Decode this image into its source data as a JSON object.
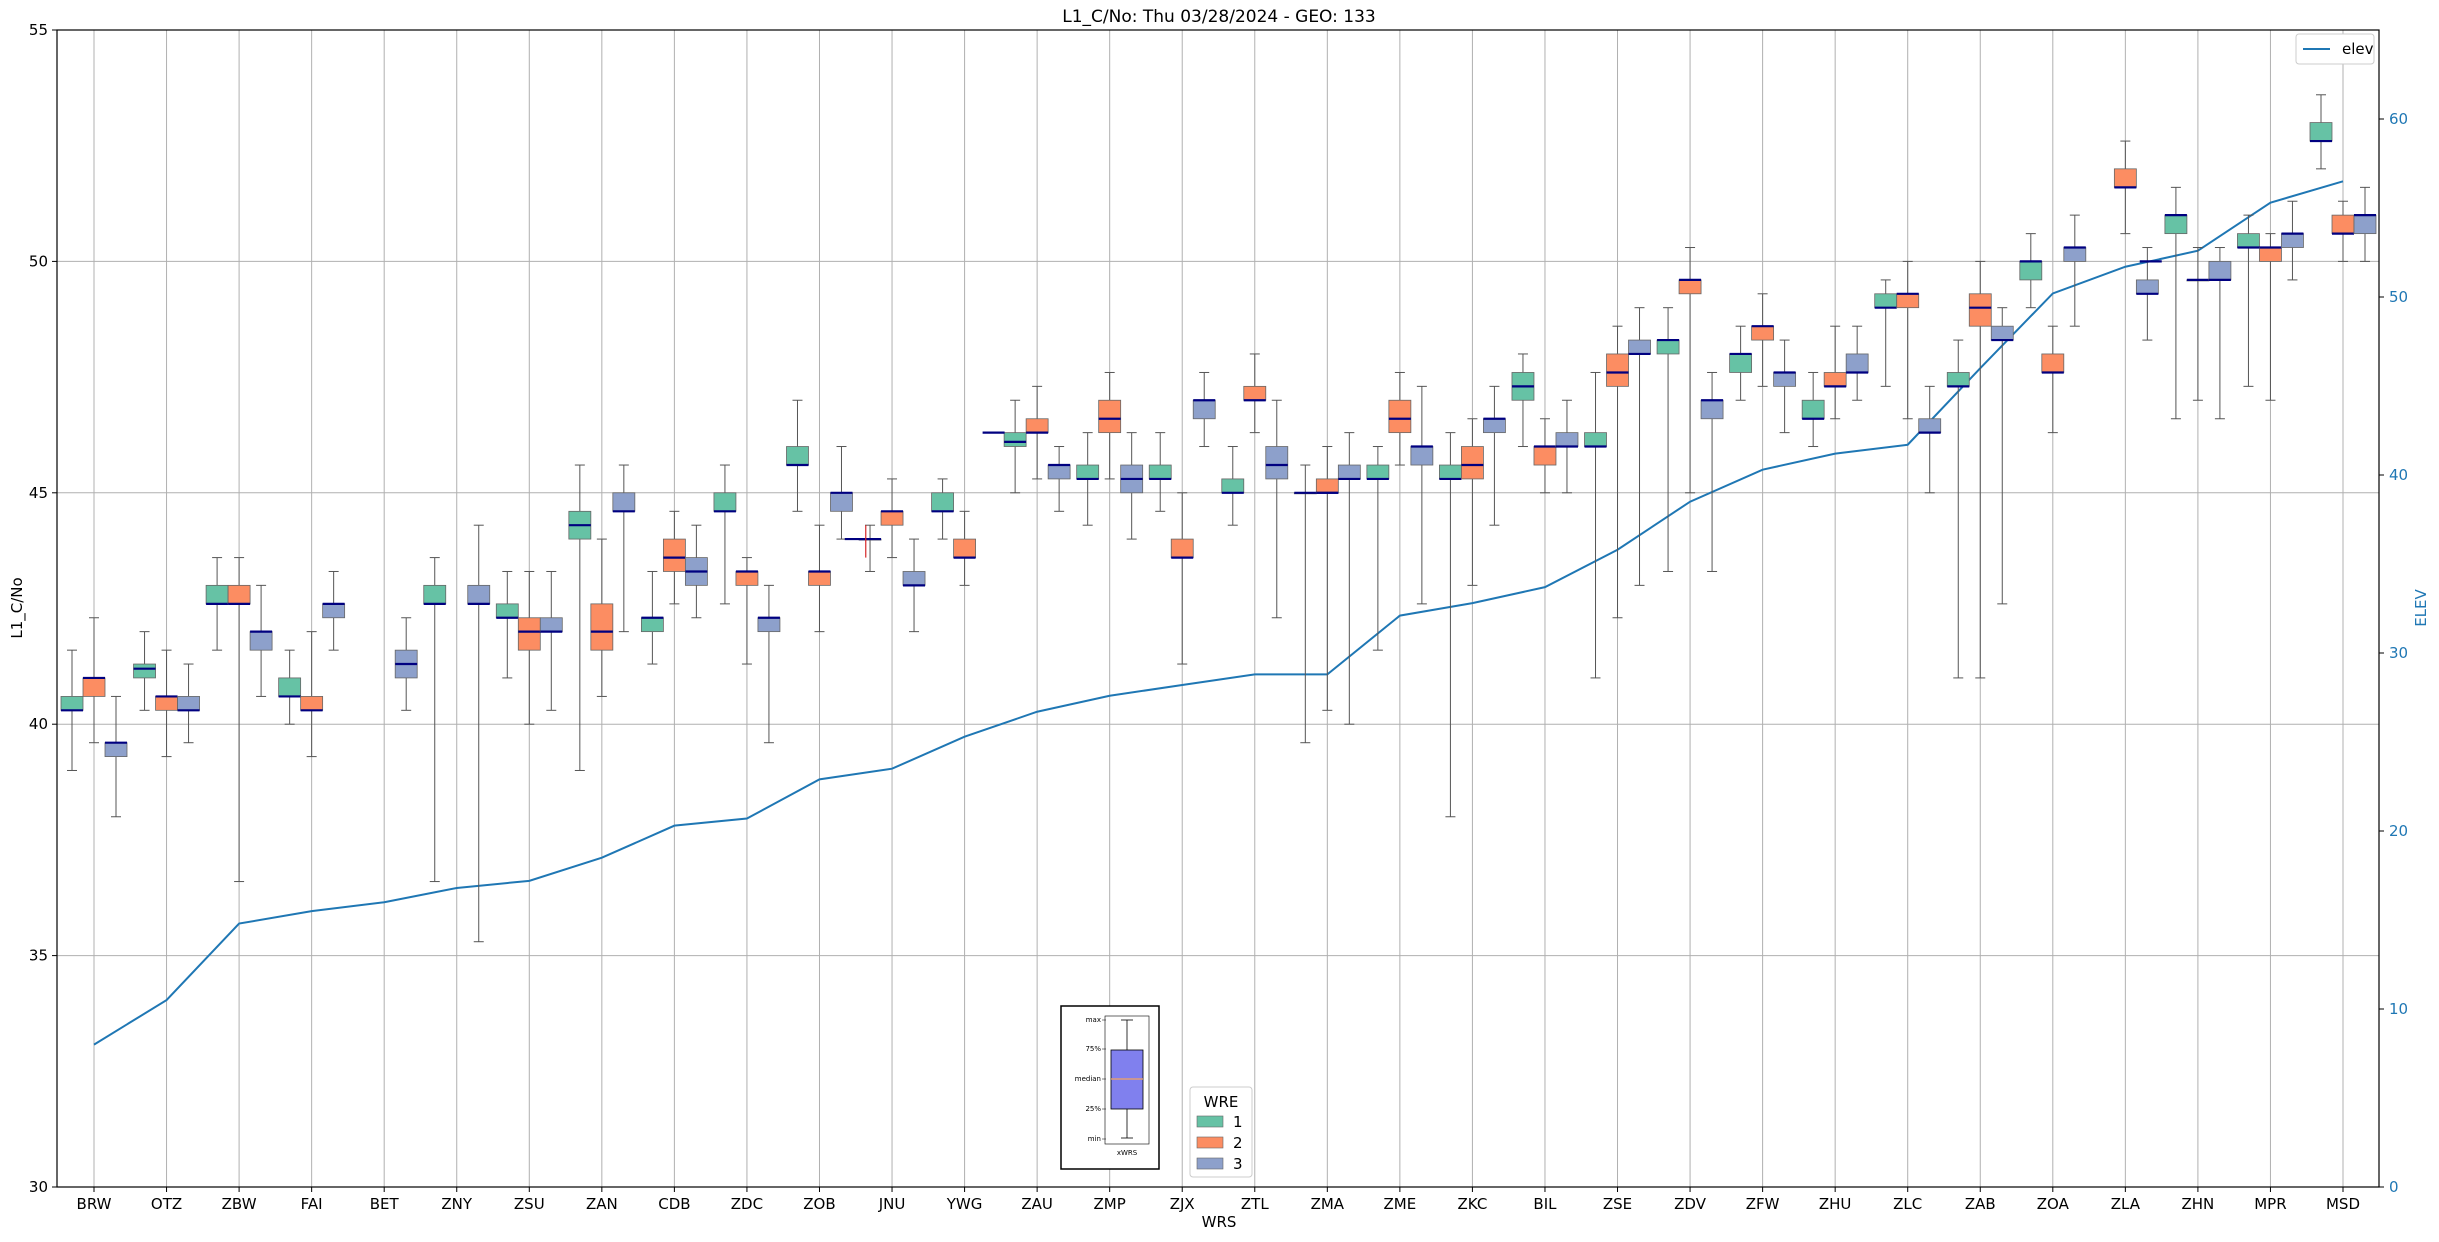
{
  "chart_data": {
    "type": "box",
    "title": "L1_C/No: Thu 03/28/2024 - GEO: 133",
    "xlabel": "WRS",
    "ylabel": "L1_C/No",
    "y2label": "ELEV",
    "ylim": [
      30,
      55
    ],
    "y2lim": [
      0,
      65
    ],
    "yticks": [
      30,
      35,
      40,
      45,
      50,
      55
    ],
    "y2ticks": [
      0,
      10,
      20,
      30,
      40,
      50,
      60
    ],
    "grid": true,
    "categories": [
      "BRW",
      "OTZ",
      "ZBW",
      "FAI",
      "BET",
      "ZNY",
      "ZSU",
      "ZAN",
      "CDB",
      "ZDC",
      "ZOB",
      "JNU",
      "YWG",
      "ZAU",
      "ZMP",
      "ZJX",
      "ZTL",
      "ZMA",
      "ZME",
      "ZKC",
      "BIL",
      "ZSE",
      "ZDV",
      "ZFW",
      "ZHU",
      "ZLC",
      "ZAB",
      "ZOA",
      "ZLA",
      "ZHN",
      "MPR",
      "MSD"
    ],
    "wre_legend": {
      "title": "WRE",
      "entries": [
        "1",
        "2",
        "3"
      ],
      "colors": [
        "#66c2a5",
        "#fc8d62",
        "#8da0cb"
      ]
    },
    "line_legend": {
      "label": "elev",
      "color": "#1f77b4"
    },
    "elev": [
      8,
      10.5,
      14.8,
      15.5,
      16,
      16.8,
      17.2,
      18.5,
      20.3,
      20.7,
      22.9,
      23.5,
      25.3,
      26.7,
      27.6,
      28.2,
      28.8,
      28.8,
      32.1,
      32.8,
      33.7,
      35.8,
      38.5,
      40.3,
      41.2,
      41.7,
      46,
      50.2,
      51.7,
      52.6,
      55.3,
      56.5
    ],
    "series": [
      {
        "name": "1",
        "color": "#66c2a5",
        "boxes": [
          {
            "cat": 0,
            "min": 39,
            "q1": 40.3,
            "med": 40.3,
            "q3": 40.6,
            "max": 41.6
          },
          {
            "cat": 1,
            "min": 40.3,
            "q1": 41,
            "med": 41.2,
            "q3": 41.3,
            "max": 42
          },
          {
            "cat": 2,
            "min": 41.6,
            "q1": 42.6,
            "med": 42.6,
            "q3": 43,
            "max": 43.6
          },
          {
            "cat": 3,
            "min": 40,
            "q1": 40.6,
            "med": 40.6,
            "q3": 41,
            "max": 41.6
          },
          {
            "cat": 5,
            "min": 36.6,
            "q1": 42.6,
            "med": 42.6,
            "q3": 43,
            "max": 43.6
          },
          {
            "cat": 6,
            "min": 41,
            "q1": 42.3,
            "med": 42.3,
            "q3": 42.6,
            "max": 43.3
          },
          {
            "cat": 7,
            "min": 39,
            "q1": 44,
            "med": 44.3,
            "q3": 44.6,
            "max": 45.6
          },
          {
            "cat": 8,
            "min": 41.3,
            "q1": 42,
            "med": 42.3,
            "q3": 42.3,
            "max": 43.3
          },
          {
            "cat": 9,
            "min": 42.6,
            "q1": 44.6,
            "med": 44.6,
            "q3": 45,
            "max": 45.6
          },
          {
            "cat": 10,
            "min": 44.6,
            "q1": 45.6,
            "med": 45.6,
            "q3": 46,
            "max": 47
          },
          {
            "cat": 11,
            "min": 43.3,
            "q1": 44,
            "med": 44,
            "q3": 44,
            "max": 44.3
          },
          {
            "cat": 12,
            "min": 44,
            "q1": 44.6,
            "med": 44.6,
            "q3": 45,
            "max": 45.3
          },
          {
            "cat": 13,
            "min": 45,
            "q1": 46,
            "med": 46.1,
            "q3": 46.3,
            "max": 47
          },
          {
            "cat": 14,
            "min": 44.3,
            "q1": 45.3,
            "med": 45.3,
            "q3": 45.6,
            "max": 46.3
          },
          {
            "cat": 15,
            "min": 44.6,
            "q1": 45.3,
            "med": 45.3,
            "q3": 45.6,
            "max": 46.3
          },
          {
            "cat": 16,
            "min": 44.3,
            "q1": 45,
            "med": 45,
            "q3": 45.3,
            "max": 46
          },
          {
            "cat": 17,
            "min": 39.6,
            "q1": 45,
            "med": 45,
            "q3": 45,
            "max": 45.6
          },
          {
            "cat": 18,
            "min": 41.6,
            "q1": 45.3,
            "med": 45.3,
            "q3": 45.6,
            "max": 46
          },
          {
            "cat": 19,
            "min": 38,
            "q1": 45.3,
            "med": 45.3,
            "q3": 45.6,
            "max": 46.3
          },
          {
            "cat": 20,
            "min": 46,
            "q1": 47,
            "med": 47.3,
            "q3": 47.6,
            "max": 48
          },
          {
            "cat": 21,
            "min": 41,
            "q1": 46,
            "med": 46,
            "q3": 46.3,
            "max": 47.6
          },
          {
            "cat": 22,
            "min": 43.3,
            "q1": 48,
            "med": 48.3,
            "q3": 48.3,
            "max": 49
          },
          {
            "cat": 23,
            "min": 47,
            "q1": 47.6,
            "med": 48,
            "q3": 48,
            "max": 48.6
          },
          {
            "cat": 24,
            "min": 46,
            "q1": 46.6,
            "med": 46.6,
            "q3": 47,
            "max": 47.6
          },
          {
            "cat": 25,
            "min": 47.3,
            "q1": 49,
            "med": 49,
            "q3": 49.3,
            "max": 49.6
          },
          {
            "cat": 26,
            "min": 41,
            "q1": 47.3,
            "med": 47.3,
            "q3": 47.6,
            "max": 48.3
          },
          {
            "cat": 27,
            "min": 49,
            "q1": 49.6,
            "med": 50,
            "q3": 50,
            "max": 50.6
          },
          {
            "cat": 29,
            "min": 46.6,
            "q1": 50.6,
            "med": 51,
            "q3": 51,
            "max": 51.6
          },
          {
            "cat": 30,
            "min": 47.3,
            "q1": 50.3,
            "med": 50.3,
            "q3": 50.6,
            "max": 51
          },
          {
            "cat": 31,
            "min": 52,
            "q1": 52.6,
            "med": 52.6,
            "q3": 53,
            "max": 53.6
          }
        ]
      },
      {
        "name": "2",
        "color": "#fc8d62",
        "boxes": [
          {
            "cat": 0,
            "min": 39.6,
            "q1": 40.6,
            "med": 41,
            "q3": 41,
            "max": 42.3
          },
          {
            "cat": 1,
            "min": 39.3,
            "q1": 40.3,
            "med": 40.6,
            "q3": 40.6,
            "max": 41.6
          },
          {
            "cat": 2,
            "min": 36.6,
            "q1": 42.6,
            "med": 42.6,
            "q3": 43,
            "max": 43.6
          },
          {
            "cat": 3,
            "min": 39.3,
            "q1": 40.3,
            "med": 40.3,
            "q3": 40.6,
            "max": 42
          },
          {
            "cat": 6,
            "min": 40,
            "q1": 41.6,
            "med": 42,
            "q3": 42.3,
            "max": 43.3
          },
          {
            "cat": 7,
            "min": 40.6,
            "q1": 41.6,
            "med": 42,
            "q3": 42.6,
            "max": 44
          },
          {
            "cat": 8,
            "min": 42.6,
            "q1": 43.3,
            "med": 43.6,
            "q3": 44,
            "max": 44.6
          },
          {
            "cat": 9,
            "min": 41.3,
            "q1": 43,
            "med": 43.3,
            "q3": 43.3,
            "max": 43.6
          },
          {
            "cat": 10,
            "min": 42,
            "q1": 43,
            "med": 43.3,
            "q3": 43.3,
            "max": 44.3
          },
          {
            "cat": 11,
            "min": 43.6,
            "q1": 44.3,
            "med": 44.6,
            "q3": 44.6,
            "max": 45.3
          },
          {
            "cat": 12,
            "min": 43,
            "q1": 43.6,
            "med": 43.6,
            "q3": 44,
            "max": 44.6
          },
          {
            "cat": 13,
            "min": 45.3,
            "q1": 46.3,
            "med": 46.3,
            "q3": 46.6,
            "max": 47.3
          },
          {
            "cat": 14,
            "min": 45.3,
            "q1": 46.3,
            "med": 46.6,
            "q3": 47,
            "max": 47.6
          },
          {
            "cat": 15,
            "min": 41.3,
            "q1": 43.6,
            "med": 43.6,
            "q3": 44,
            "max": 45
          },
          {
            "cat": 16,
            "min": 46.3,
            "q1": 47,
            "med": 47,
            "q3": 47.3,
            "max": 48
          },
          {
            "cat": 17,
            "min": 40.3,
            "q1": 45,
            "med": 45,
            "q3": 45.3,
            "max": 46
          },
          {
            "cat": 18,
            "min": 45.6,
            "q1": 46.3,
            "med": 46.6,
            "q3": 47,
            "max": 47.6
          },
          {
            "cat": 19,
            "min": 43,
            "q1": 45.3,
            "med": 45.6,
            "q3": 46,
            "max": 46.6
          },
          {
            "cat": 20,
            "min": 45,
            "q1": 45.6,
            "med": 46,
            "q3": 46,
            "max": 46.6
          },
          {
            "cat": 21,
            "min": 42.3,
            "q1": 47.3,
            "med": 47.6,
            "q3": 48,
            "max": 48.6
          },
          {
            "cat": 22,
            "min": 45,
            "q1": 49.3,
            "med": 49.6,
            "q3": 49.6,
            "max": 50.3
          },
          {
            "cat": 23,
            "min": 47.3,
            "q1": 48.3,
            "med": 48.6,
            "q3": 48.6,
            "max": 49.3
          },
          {
            "cat": 24,
            "min": 46.6,
            "q1": 47.3,
            "med": 47.3,
            "q3": 47.6,
            "max": 48.6
          },
          {
            "cat": 25,
            "min": 46.6,
            "q1": 49,
            "med": 49.3,
            "q3": 49.3,
            "max": 50
          },
          {
            "cat": 26,
            "min": 41,
            "q1": 48.6,
            "med": 49,
            "q3": 49.3,
            "max": 50
          },
          {
            "cat": 27,
            "min": 46.3,
            "q1": 47.6,
            "med": 47.6,
            "q3": 48,
            "max": 48.6
          },
          {
            "cat": 28,
            "min": 50.6,
            "q1": 51.6,
            "med": 51.6,
            "q3": 52,
            "max": 52.6
          },
          {
            "cat": 29,
            "min": 47,
            "q1": 49.6,
            "med": 49.6,
            "q3": 49.6,
            "max": 50.3
          },
          {
            "cat": 30,
            "min": 47,
            "q1": 50,
            "med": 50.3,
            "q3": 50.3,
            "max": 50.6
          },
          {
            "cat": 31,
            "min": 50,
            "q1": 50.6,
            "med": 50.6,
            "q3": 51,
            "max": 51.3
          }
        ]
      },
      {
        "name": "3",
        "color": "#8da0cb",
        "boxes": [
          {
            "cat": 0,
            "min": 38,
            "q1": 39.3,
            "med": 39.6,
            "q3": 39.6,
            "max": 40.6
          },
          {
            "cat": 1,
            "min": 39.6,
            "q1": 40.3,
            "med": 40.3,
            "q3": 40.6,
            "max": 41.3
          },
          {
            "cat": 2,
            "min": 40.6,
            "q1": 41.6,
            "med": 42,
            "q3": 42,
            "max": 43
          },
          {
            "cat": 3,
            "min": 41.6,
            "q1": 42.3,
            "med": 42.6,
            "q3": 42.6,
            "max": 43.3
          },
          {
            "cat": 4,
            "min": 40.3,
            "q1": 41,
            "med": 41.3,
            "q3": 41.6,
            "max": 42.3
          },
          {
            "cat": 5,
            "min": 35.3,
            "q1": 42.6,
            "med": 42.6,
            "q3": 43,
            "max": 44.3
          },
          {
            "cat": 6,
            "min": 40.3,
            "q1": 42,
            "med": 42,
            "q3": 42.3,
            "max": 43.3
          },
          {
            "cat": 7,
            "min": 42,
            "q1": 44.6,
            "med": 44.6,
            "q3": 45,
            "max": 45.6
          },
          {
            "cat": 8,
            "min": 42.3,
            "q1": 43,
            "med": 43.3,
            "q3": 43.6,
            "max": 44.3
          },
          {
            "cat": 9,
            "min": 39.6,
            "q1": 42,
            "med": 42.3,
            "q3": 42.3,
            "max": 43
          },
          {
            "cat": 10,
            "min": 44,
            "q1": 44.6,
            "med": 45,
            "q3": 45,
            "max": 46
          },
          {
            "cat": 11,
            "min": 42,
            "q1": 43,
            "med": 43,
            "q3": 43.3,
            "max": 44
          },
          {
            "cat": 13,
            "min": 44.6,
            "q1": 45.3,
            "med": 45.6,
            "q3": 45.6,
            "max": 46
          },
          {
            "cat": 14,
            "min": 44,
            "q1": 45,
            "med": 45.3,
            "q3": 45.6,
            "max": 46.3
          },
          {
            "cat": 15,
            "min": 46,
            "q1": 46.6,
            "med": 47,
            "q3": 47,
            "max": 47.6
          },
          {
            "cat": 16,
            "min": 42.3,
            "q1": 45.3,
            "med": 45.6,
            "q3": 46,
            "max": 47
          },
          {
            "cat": 17,
            "min": 40,
            "q1": 45.3,
            "med": 45.3,
            "q3": 45.6,
            "max": 46.3
          },
          {
            "cat": 18,
            "min": 42.6,
            "q1": 45.6,
            "med": 46,
            "q3": 46,
            "max": 47.3
          },
          {
            "cat": 19,
            "min": 44.3,
            "q1": 46.3,
            "med": 46.6,
            "q3": 46.6,
            "max": 47.3
          },
          {
            "cat": 20,
            "min": 45,
            "q1": 46,
            "med": 46,
            "q3": 46.3,
            "max": 47
          },
          {
            "cat": 21,
            "min": 43,
            "q1": 48,
            "med": 48,
            "q3": 48.3,
            "max": 49
          },
          {
            "cat": 22,
            "min": 43.3,
            "q1": 46.6,
            "med": 47,
            "q3": 47,
            "max": 47.6
          },
          {
            "cat": 23,
            "min": 46.3,
            "q1": 47.3,
            "med": 47.6,
            "q3": 47.6,
            "max": 48.3
          },
          {
            "cat": 24,
            "min": 47,
            "q1": 47.6,
            "med": 47.6,
            "q3": 48,
            "max": 48.6
          },
          {
            "cat": 25,
            "min": 45,
            "q1": 46.3,
            "med": 46.3,
            "q3": 46.6,
            "max": 47.3
          },
          {
            "cat": 26,
            "min": 42.6,
            "q1": 48.3,
            "med": 48.3,
            "q3": 48.6,
            "max": 49
          },
          {
            "cat": 27,
            "min": 48.6,
            "q1": 50,
            "med": 50.3,
            "q3": 50.3,
            "max": 51
          },
          {
            "cat": 28,
            "min": 48.3,
            "q1": 49.3,
            "med": 49.3,
            "q3": 49.6,
            "max": 50.3
          },
          {
            "cat": 29,
            "min": 46.6,
            "q1": 49.6,
            "med": 49.6,
            "q3": 50,
            "max": 50.3
          },
          {
            "cat": 30,
            "min": 49.6,
            "q1": 50.3,
            "med": 50.6,
            "q3": 50.6,
            "max": 51.3
          },
          {
            "cat": 31,
            "min": 50,
            "q1": 50.6,
            "med": 51,
            "q3": 51,
            "max": 51.6
          }
        ]
      }
    ],
    "lines_only": [
      {
        "cat": 10.5,
        "value": 44,
        "series": "1",
        "color": "#000080"
      },
      {
        "cat": 12.4,
        "value": 46.3,
        "series": "1",
        "color": "#000080"
      },
      {
        "cat": 28.35,
        "value": 50,
        "series": "1",
        "color": "#000080"
      },
      {
        "cat": 17.0,
        "value": 45,
        "series": "1",
        "color": "#000080"
      }
    ],
    "inset": {
      "labels": [
        "max",
        "75%",
        "median",
        "25%",
        "min"
      ],
      "xlabel": "xWRS"
    }
  }
}
